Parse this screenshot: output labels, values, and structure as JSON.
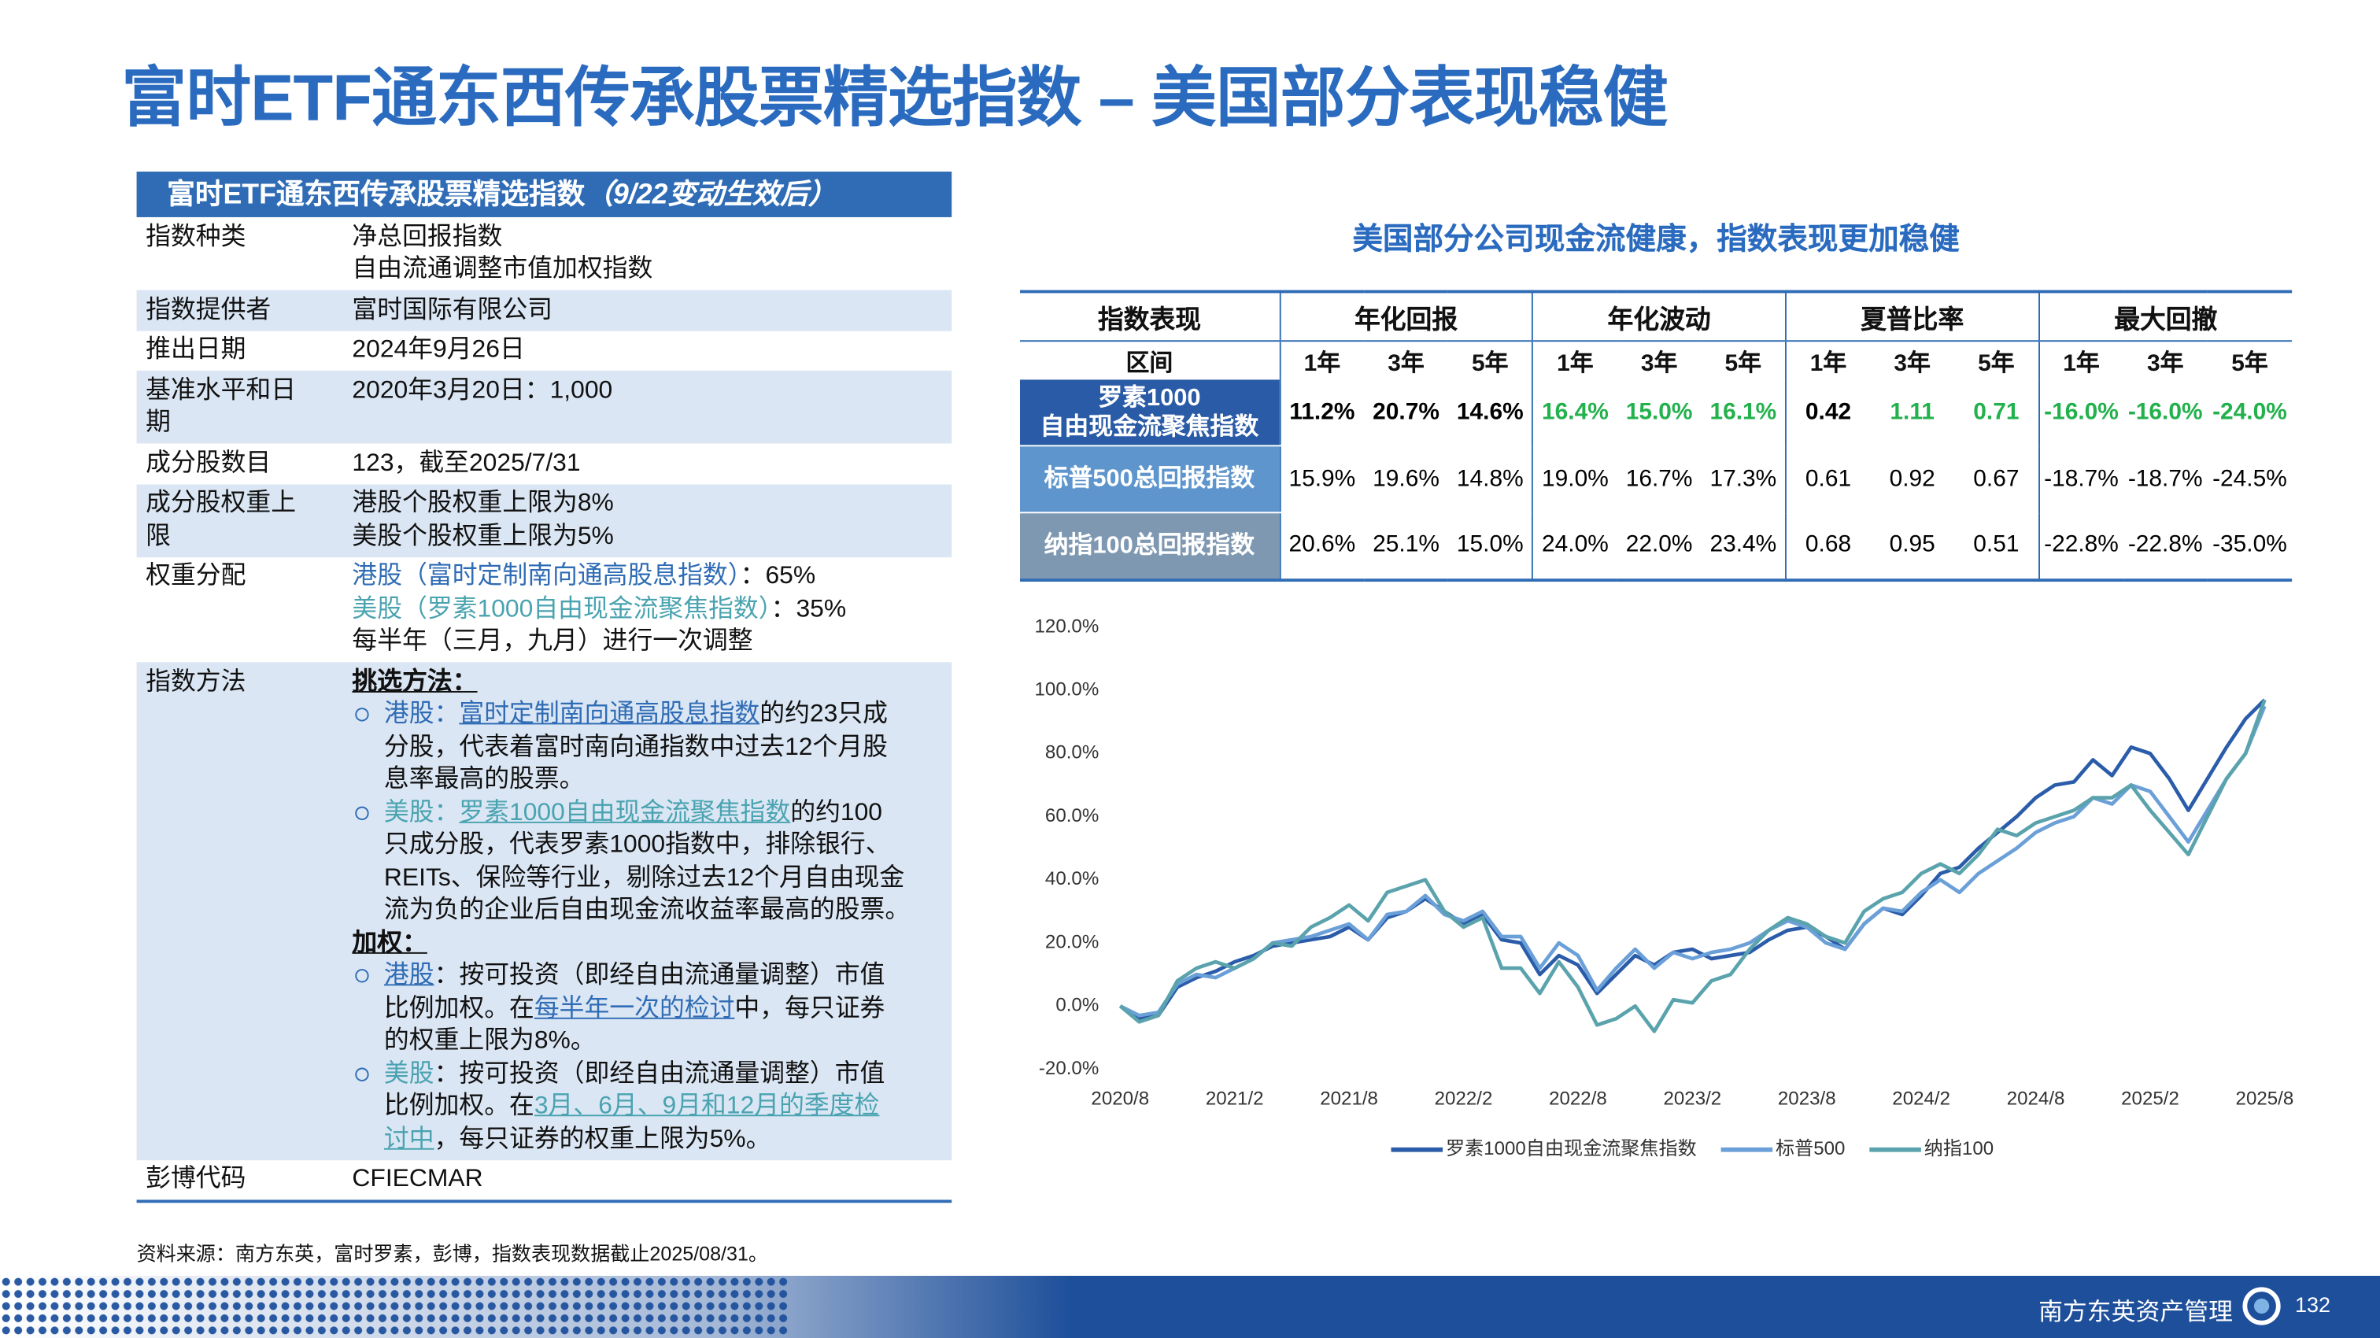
{
  "title": "富时ETF通东西传承股票精选指数 – 美国部分表现稳健",
  "left_table": {
    "title": "富时ETF通东西传承股票精选指数",
    "note": "（9/22变动生效后）",
    "rows": [
      {
        "label": "指数种类",
        "lines": [
          "净总回报指数",
          "自由流通调整市值加权指数"
        ]
      },
      {
        "label": "指数提供者",
        "lines": [
          "富时国际有限公司"
        ]
      },
      {
        "label": "推出日期",
        "lines": [
          "2024年9月26日"
        ]
      },
      {
        "label": "基准水平和日期",
        "lines": [
          "2020年3月20日：1,000"
        ]
      },
      {
        "label": "成分股数目",
        "lines": [
          "123，截至2025/7/31"
        ]
      },
      {
        "label": "成分股权重上限",
        "lines": [
          "港股个股权重上限为8%",
          "美股个股权重上限为5%"
        ]
      },
      {
        "label": "权重分配",
        "lines": [
          [
            {
              "text": "港股（富时定制南向通高股息指数）",
              "style": "blue"
            },
            "：65%"
          ],
          [
            {
              "text": "美股（罗素1000自由现金流聚焦指数）",
              "style": "teal"
            },
            "：35%"
          ],
          "每半年（三月，九月）进行一次调整"
        ]
      },
      {
        "label": "指数方法",
        "sections": [
          {
            "heading": "挑选方法：",
            "items": [
              [
                [
                  {
                    "text": "港股：",
                    "style": "blue"
                  },
                  {
                    "text": "富时定制南向通高股息指数",
                    "style": "blue-u"
                  },
                  "的约23只成"
                ],
                "分股，代表着富时南向通指数中过去12个月股",
                "息率最高的股票。"
              ],
              [
                [
                  {
                    "text": "美股：",
                    "style": "teal"
                  },
                  {
                    "text": "罗素1000自由现金流聚焦指数",
                    "style": "teal-u"
                  },
                  "的约100"
                ],
                "只成分股，代表罗素1000指数中，排除银行、",
                "REITs、保险等行业，剔除过去12个月自由现金",
                "流为负的企业后自由现金流收益率最高的股票。"
              ]
            ]
          },
          {
            "heading": "加权：",
            "items": [
              [
                [
                  {
                    "text": "港股",
                    "style": "blue-u"
                  },
                  "：按可投资（即经自由流通量调整）市值"
                ],
                [
                  "比例加权。在",
                  {
                    "text": "每半年一次的检讨",
                    "style": "blue-u"
                  },
                  "中，每只证券"
                ],
                "的权重上限为8%。"
              ],
              [
                [
                  {
                    "text": "美股",
                    "style": "teal"
                  },
                  "：按可投资（即经自由流通量调整）市值"
                ],
                [
                  "比例加权。在",
                  {
                    "text": "3月、6月、9月和12月的季度检",
                    "style": "teal-u"
                  }
                ],
                [
                  {
                    "text": "讨中",
                    "style": "teal-u"
                  },
                  "，每只证券的权重上限为5%。"
                ]
              ]
            ]
          }
        ]
      },
      {
        "label": "彭博代码",
        "lines": [
          "CFIECMAR"
        ]
      }
    ]
  },
  "right_title": "美国部分公司现金流健康，指数表现更加稳健",
  "perf_table": {
    "corner": "指数表现",
    "groups": [
      "年化回报",
      "年化波动",
      "夏普比率",
      "最大回撤"
    ],
    "period_label": "区间",
    "periods": [
      "1年",
      "3年",
      "5年"
    ],
    "rows": [
      {
        "name": [
          "罗素1000",
          "自由现金流聚焦指数"
        ],
        "color": "#2a5ba6",
        "bold": true,
        "highlight": [
          3,
          4,
          5,
          7,
          8,
          9,
          10,
          11
        ],
        "values": [
          "11.2%",
          "20.7%",
          "14.6%",
          "16.4%",
          "15.0%",
          "16.1%",
          "0.42",
          "1.11",
          "0.71",
          "-16.0%",
          "-16.0%",
          "-24.0%"
        ]
      },
      {
        "name": "标普500总回报指数",
        "color": "#5d95cc",
        "bold": false,
        "highlight": [],
        "values": [
          "15.9%",
          "19.6%",
          "14.8%",
          "19.0%",
          "16.7%",
          "17.3%",
          "0.61",
          "0.92",
          "0.67",
          "-18.7%",
          "-18.7%",
          "-24.5%"
        ]
      },
      {
        "name": "纳指100总回报指数",
        "color": "#7f98b2",
        "bold": false,
        "highlight": [],
        "values": [
          "20.6%",
          "25.1%",
          "15.0%",
          "24.0%",
          "22.0%",
          "23.4%",
          "0.68",
          "0.95",
          "0.51",
          "-22.8%",
          "-22.8%",
          "-35.0%"
        ]
      }
    ]
  },
  "chart_data": {
    "type": "line",
    "x": [
      "2020/8",
      "2020/9",
      "2020/10",
      "2020/11",
      "2020/12",
      "2021/1",
      "2021/2",
      "2021/3",
      "2021/4",
      "2021/5",
      "2021/6",
      "2021/7",
      "2021/8",
      "2021/9",
      "2021/10",
      "2021/11",
      "2021/12",
      "2022/1",
      "2022/2",
      "2022/3",
      "2022/4",
      "2022/5",
      "2022/6",
      "2022/7",
      "2022/8",
      "2022/9",
      "2022/10",
      "2022/11",
      "2022/12",
      "2023/1",
      "2023/2",
      "2023/3",
      "2023/4",
      "2023/5",
      "2023/6",
      "2023/7",
      "2023/8",
      "2023/9",
      "2023/10",
      "2023/11",
      "2023/12",
      "2024/1",
      "2024/2",
      "2024/3",
      "2024/4",
      "2024/5",
      "2024/6",
      "2024/7",
      "2024/8",
      "2024/9",
      "2024/10",
      "2024/11",
      "2024/12",
      "2025/1",
      "2025/2",
      "2025/3",
      "2025/4",
      "2025/5",
      "2025/6",
      "2025/7",
      "2025/8"
    ],
    "series": [
      {
        "name": "罗素1000自由现金流聚焦指数",
        "color": "#2a5caa",
        "values": [
          0,
          -4,
          -3,
          6,
          9,
          11,
          14,
          16,
          19,
          20,
          21,
          22,
          25,
          21,
          28,
          30,
          34,
          30,
          26,
          29,
          21,
          20,
          10,
          16,
          13,
          4,
          10,
          16,
          13,
          17,
          18,
          15,
          16,
          17,
          21,
          24,
          25,
          22,
          18,
          26,
          31,
          29,
          35,
          42,
          44,
          50,
          55,
          60,
          66,
          70,
          71,
          78,
          73,
          82,
          80,
          72,
          62,
          72,
          82,
          91,
          97
        ]
      },
      {
        "name": "标普500",
        "color": "#6a9fd8",
        "values": [
          0,
          -3,
          -2,
          7,
          10,
          9,
          12,
          15,
          20,
          21,
          22,
          24,
          26,
          21,
          29,
          30,
          35,
          29,
          27,
          30,
          22,
          22,
          12,
          20,
          16,
          5,
          12,
          18,
          12,
          17,
          15,
          17,
          18,
          20,
          24,
          27,
          25,
          20,
          18,
          26,
          31,
          30,
          36,
          40,
          36,
          42,
          46,
          50,
          55,
          58,
          60,
          66,
          64,
          70,
          68,
          60,
          52,
          62,
          72,
          80,
          95
        ]
      },
      {
        "name": "纳指100",
        "color": "#5aa3ad",
        "values": [
          0,
          -5,
          -3,
          8,
          12,
          14,
          12,
          15,
          20,
          19,
          25,
          28,
          32,
          27,
          36,
          38,
          40,
          30,
          25,
          28,
          12,
          12,
          4,
          14,
          6,
          -6,
          -4,
          0,
          -8,
          2,
          1,
          8,
          10,
          18,
          24,
          28,
          26,
          22,
          20,
          30,
          34,
          36,
          42,
          45,
          42,
          48,
          56,
          54,
          58,
          60,
          62,
          66,
          66,
          70,
          62,
          55,
          48,
          60,
          72,
          80,
          97
        ]
      }
    ],
    "xticks": [
      "2020/8",
      "2021/2",
      "2021/8",
      "2022/2",
      "2022/8",
      "2023/2",
      "2023/8",
      "2024/2",
      "2024/8",
      "2025/2",
      "2025/8"
    ],
    "ylim": [
      -20,
      120
    ],
    "yticks": [
      {
        "value": -20,
        "label": "-20.0%"
      },
      {
        "value": 0,
        "label": "0.0%"
      },
      {
        "value": 20,
        "label": "20.0%"
      },
      {
        "value": 40,
        "label": "40.0%"
      },
      {
        "value": 60,
        "label": "60.0%"
      },
      {
        "value": 80,
        "label": "80.0%"
      },
      {
        "value": 100,
        "label": "100.0%"
      },
      {
        "value": 120,
        "label": "120.0%"
      }
    ],
    "grid": false,
    "legend": "bottom"
  },
  "source": "资料来源：南方东英，富时罗素，彭博，指数表现数据截止2025/08/31。",
  "footer": {
    "company": "南方东英资产管理",
    "page": "132"
  }
}
